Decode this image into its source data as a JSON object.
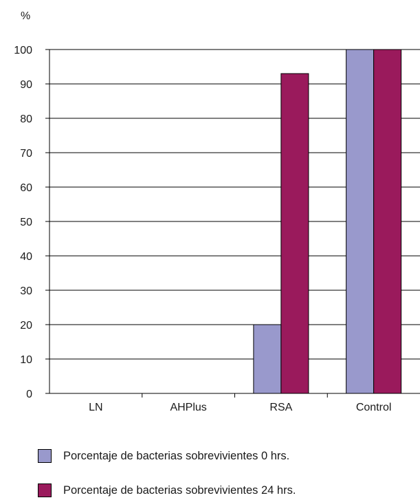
{
  "chart_data": {
    "type": "bar",
    "ylabel": "%",
    "ylim": [
      0,
      100
    ],
    "yticks": [
      0,
      10,
      20,
      30,
      40,
      50,
      60,
      70,
      80,
      90,
      100
    ],
    "grid": true,
    "categories": [
      "LN",
      "AHPlus",
      "RSA",
      "Control"
    ],
    "series": [
      {
        "name": "Porcentaje de bacterias sobrevivientes 0 hrs.",
        "color": "#9999cc",
        "values": [
          0,
          0,
          20,
          100
        ]
      },
      {
        "name": "Porcentaje de bacterias sobrevivientes 24 hrs.",
        "color": "#9a1a5c",
        "values": [
          0,
          0,
          93,
          100
        ]
      }
    ],
    "legend_position": "bottom"
  }
}
